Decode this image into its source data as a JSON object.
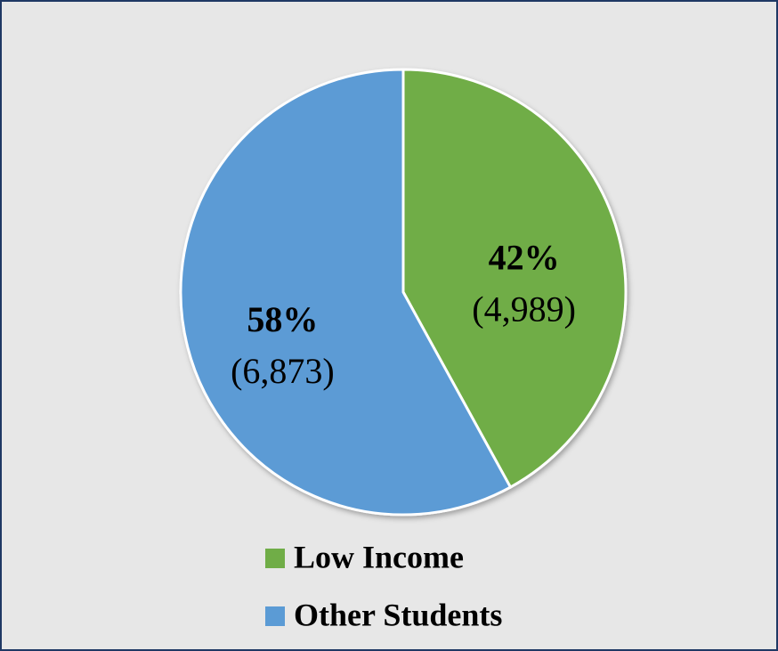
{
  "chart_data": {
    "type": "pie",
    "categories": [
      "Low Income",
      "Other Students"
    ],
    "values": [
      42,
      58
    ],
    "value_labels": [
      "42%",
      "58%"
    ],
    "counts": [
      4989,
      6873
    ],
    "count_labels": [
      "(4,989)",
      "(6,873)"
    ],
    "colors": [
      "#70ad47",
      "#5b9bd5"
    ],
    "legend": "bottom"
  }
}
